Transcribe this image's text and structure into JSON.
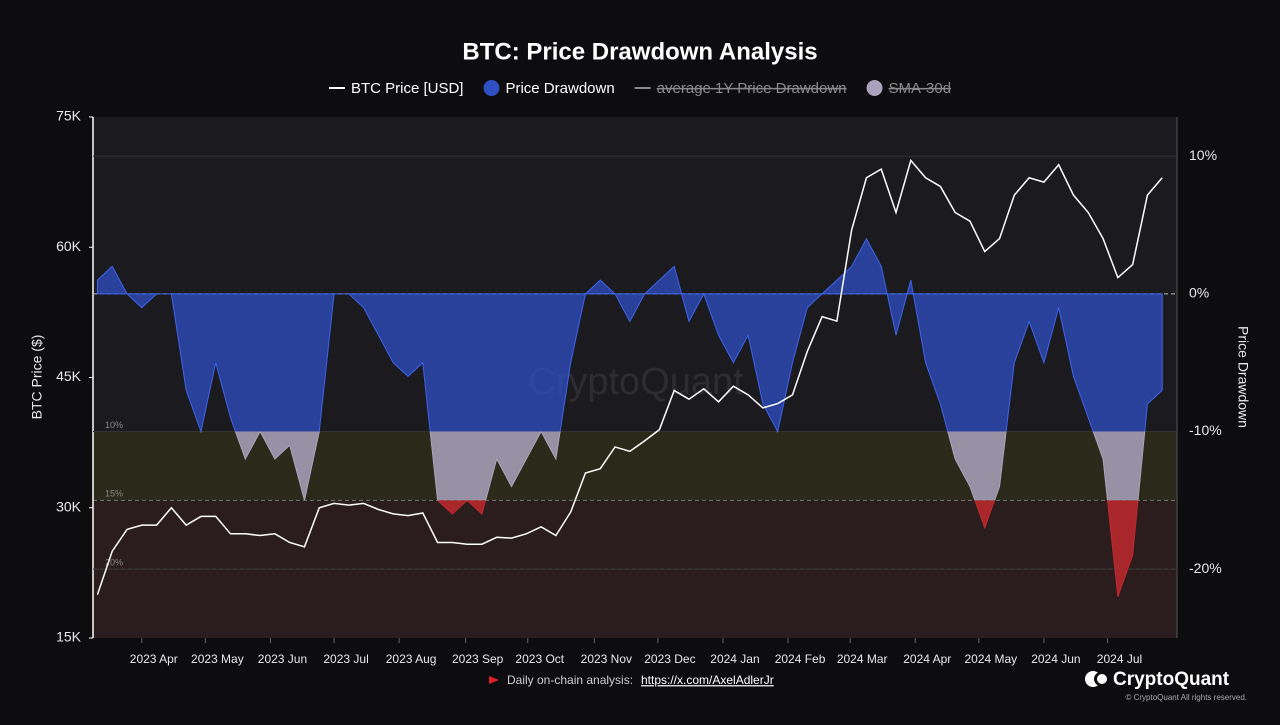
{
  "chart_data": {
    "type": "dual-axis-line-area",
    "title": "BTC: Price Drawdown Analysis",
    "y_label": "BTC Price ($)",
    "y2_label": "Price Drawdown",
    "watermark": "CryptoQuant",
    "xlim": [
      -0.3,
      73
    ],
    "xticks": [
      {
        "value": 3.0,
        "label": "2023 Apr"
      },
      {
        "value": 7.3,
        "label": "2023 May"
      },
      {
        "value": 11.7,
        "label": "2023 Jun"
      },
      {
        "value": 16.0,
        "label": "2023 Jul"
      },
      {
        "value": 20.4,
        "label": "2023 Aug"
      },
      {
        "value": 24.9,
        "label": "2023 Sep"
      },
      {
        "value": 29.1,
        "label": "2023 Oct"
      },
      {
        "value": 33.6,
        "label": "2023 Nov"
      },
      {
        "value": 37.9,
        "label": "2023 Dec"
      },
      {
        "value": 42.3,
        "label": "2024 Jan"
      },
      {
        "value": 46.7,
        "label": "2024 Feb"
      },
      {
        "value": 50.9,
        "label": "2024 Mar"
      },
      {
        "value": 55.3,
        "label": "2024 Apr"
      },
      {
        "value": 59.6,
        "label": "2024 May"
      },
      {
        "value": 64.0,
        "label": "2024 Jun"
      },
      {
        "value": 68.3,
        "label": "2024 Jul"
      }
    ],
    "ylim": [
      15000,
      75000
    ],
    "yticks": [
      {
        "value": 15000,
        "label": "15K"
      },
      {
        "value": 30000,
        "label": "30K"
      },
      {
        "value": 45000,
        "label": "45K"
      },
      {
        "value": 60000,
        "label": "60K"
      },
      {
        "value": 75000,
        "label": "75K"
      }
    ],
    "y2lim": [
      -25,
      12.85
    ],
    "y2ticks": [
      {
        "value": 10,
        "label": "10%"
      },
      {
        "value": 0,
        "label": "0%"
      },
      {
        "value": -10,
        "label": "-10%"
      },
      {
        "value": -20,
        "label": "-20%"
      }
    ],
    "zones": [
      {
        "value": -10,
        "label": "10%",
        "color": "#2b2919",
        "area_color": "#a9a3bd"
      },
      {
        "value": -15,
        "label": "15%",
        "color": "#2b1d1d",
        "area_color": "#c0282d"
      },
      {
        "value": -20,
        "label": "20%",
        "color": "#2b1d1d",
        "area_color": "#c0282d"
      }
    ],
    "series": [
      {
        "name": "BTC Price [USD]",
        "color": "#ffffff",
        "kind": "line",
        "values": [
          20000,
          25000,
          27500,
          28000,
          28000,
          30000,
          28000,
          29000,
          29000,
          27000,
          27000,
          26800,
          27000,
          26000,
          25500,
          30000,
          30500,
          30300,
          30500,
          29800,
          29300,
          29100,
          29400,
          26000,
          26000,
          25800,
          25800,
          26600,
          26500,
          27000,
          27800,
          26800,
          29500,
          34000,
          34500,
          37000,
          36500,
          37700,
          39000,
          43500,
          42500,
          43700,
          42200,
          44000,
          43000,
          41500,
          42000,
          43000,
          48000,
          52000,
          51500,
          62000,
          68000,
          69000,
          64000,
          70000,
          68000,
          67000,
          64000,
          63000,
          59500,
          61000,
          66000,
          68000,
          67500,
          69500,
          66000,
          64000,
          61000,
          56500,
          58000,
          66000,
          68000
        ]
      },
      {
        "name": "Price Drawdown",
        "color": "#2f4fc4",
        "kind": "area",
        "axis": "y2",
        "values": [
          1,
          2,
          0,
          -1,
          0,
          0,
          -7,
          -10,
          -5,
          -9,
          -12,
          -10,
          -12,
          -11,
          -15,
          -10,
          0,
          0,
          -1,
          -3,
          -5,
          -6,
          -5,
          -15,
          -16,
          -15,
          -16,
          -12,
          -14,
          -12,
          -10,
          -12,
          -5,
          0,
          1,
          0,
          -2,
          0,
          1,
          2,
          -2,
          0,
          -3,
          -5,
          -3,
          -8,
          -10,
          -5,
          -1,
          0,
          1,
          2,
          4,
          2,
          -3,
          1,
          -5,
          -8,
          -12,
          -14,
          -17,
          -14,
          -5,
          -2,
          -5,
          -1,
          -6,
          -9,
          -12,
          -22,
          -19,
          -8,
          -7
        ]
      },
      {
        "name": "average 1Y Price Drawdown",
        "color": "#8a8a8a",
        "kind": "dash",
        "hidden": true
      },
      {
        "name": "SMA-30d",
        "color": "#a9a3bd",
        "kind": "dot",
        "hidden": true
      }
    ],
    "footer": {
      "text": "Daily on-chain analysis: ",
      "link": "https://x.com/AxelAdlerJr"
    },
    "brand": {
      "name": "CryptoQuant",
      "rights": "© CryptoQuant All rights reserved."
    }
  }
}
